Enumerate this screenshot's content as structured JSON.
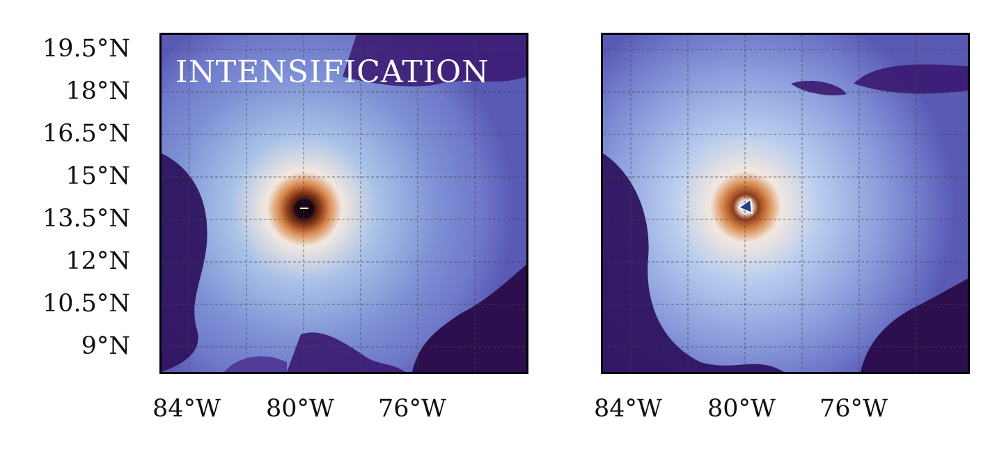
{
  "map": {
    "y_ticks": [
      "19.5°N",
      "18°N",
      "16.5°N",
      "15°N",
      "13.5°N",
      "12°N",
      "10.5°N",
      "9°N"
    ],
    "x_ticks": [
      "84°W",
      "80°W",
      "76°W"
    ],
    "colormap": [
      "#2b0f4e",
      "#4a2b8c",
      "#6f78c9",
      "#a9c2e8",
      "#f2e7df",
      "#d9884d",
      "#8c3b1a",
      "#230c12"
    ],
    "panels": [
      {
        "title": "INTENSIFICATION"
      },
      {
        "title": ""
      }
    ]
  }
}
